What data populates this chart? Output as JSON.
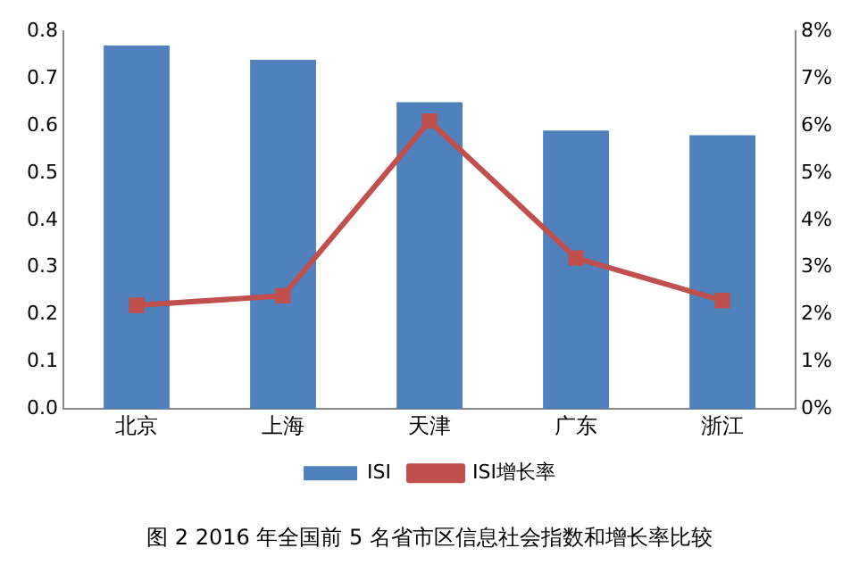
{
  "chart_data": {
    "type": "bar",
    "title": "图 2 2016 年全国前 5 名省市区信息社会指数和增长率比较",
    "categories": [
      "北京",
      "上海",
      "天津",
      "广东",
      "浙江"
    ],
    "series": [
      {
        "name": "ISI",
        "color": "#4f81bd",
        "values": [
          0.77,
          0.74,
          0.65,
          0.59,
          0.58
        ]
      },
      {
        "name": "ISI增长率",
        "type": "line",
        "axis": "y2",
        "color": "#c0504d",
        "marker": "square",
        "values": [
          2.2,
          2.4,
          6.1,
          3.2,
          2.3
        ]
      }
    ],
    "ylim": [
      0,
      0.8
    ],
    "yticks": [
      {
        "value": 0,
        "label": "0.0"
      },
      {
        "value": 0.1,
        "label": "0.1"
      },
      {
        "value": 0.2,
        "label": "0.2"
      },
      {
        "value": 0.3,
        "label": "0.3"
      },
      {
        "value": 0.4,
        "label": "0.4"
      },
      {
        "value": 0.5,
        "label": "0.5"
      },
      {
        "value": 0.6,
        "label": "0.6"
      },
      {
        "value": 0.7,
        "label": "0.7"
      },
      {
        "value": 0.8,
        "label": "0.8"
      }
    ],
    "y2lim": [
      0,
      8
    ],
    "y2ticks": [
      {
        "value": 0,
        "label": "0%"
      },
      {
        "value": 1,
        "label": "1%"
      },
      {
        "value": 2,
        "label": "2%"
      },
      {
        "value": 3,
        "label": "3%"
      },
      {
        "value": 4,
        "label": "4%"
      },
      {
        "value": 5,
        "label": "5%"
      },
      {
        "value": 6,
        "label": "6%"
      },
      {
        "value": 7,
        "label": "7%"
      },
      {
        "value": 8,
        "label": "8%"
      }
    ],
    "grid": false,
    "legend": "bottom"
  }
}
